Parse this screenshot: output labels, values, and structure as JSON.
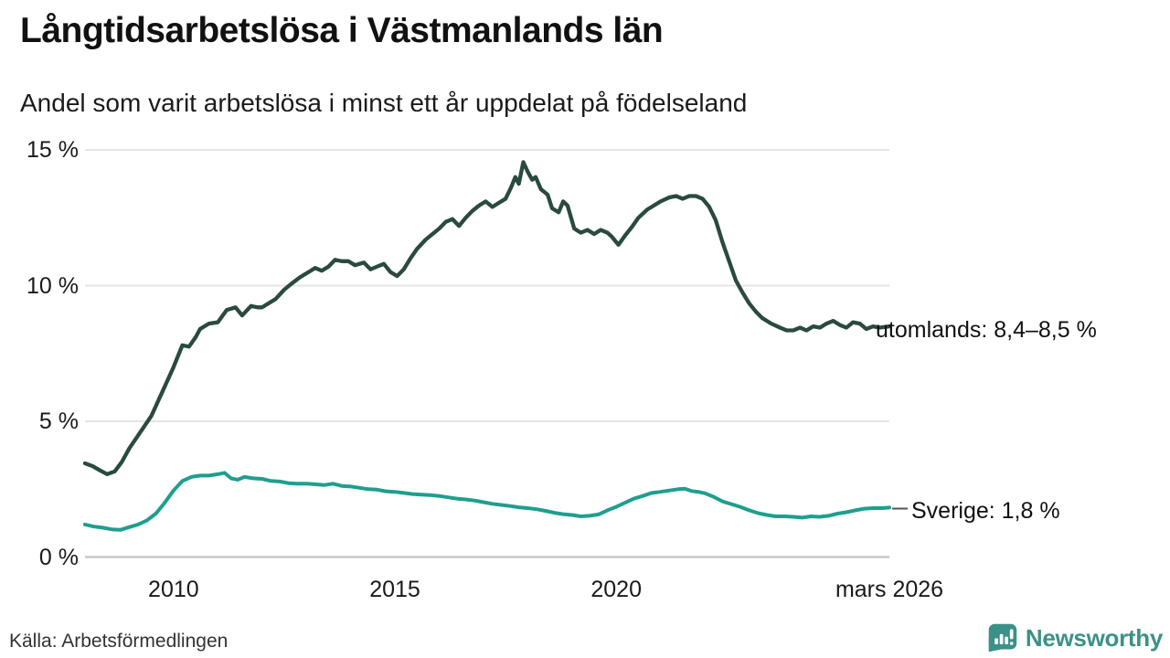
{
  "header": {
    "title": "Långtidsarbetslösa i Västmanlands län",
    "subtitle": "Andel som varit arbetslösa i minst ett år uppdelat på födelseland"
  },
  "footer": {
    "source": "Källa: Arbetsförmedlingen",
    "brand": "Newsworthy"
  },
  "chart_data": {
    "type": "line",
    "title": "Långtidsarbetslösa i Västmanlands län",
    "subtitle": "Andel som varit arbetslösa i minst ett år uppdelat på födelseland",
    "unit": "%",
    "grid": true,
    "colors": {
      "gridline": "#e4e4e4",
      "zeroline": "#c9c9c9",
      "text": "#1a1a1a",
      "brand": "#3b9187",
      "connector": "#555555"
    },
    "x_axis": {
      "range_start": 2008.0,
      "range_end": 2026.17,
      "ticks": [
        {
          "year": 2010,
          "label": "2010"
        },
        {
          "year": 2015,
          "label": "2015"
        },
        {
          "year": 2020,
          "label": "2020"
        },
        {
          "year": 2026.17,
          "label": "mars 2026"
        }
      ]
    },
    "y_axis": {
      "min": 0,
      "max": 15,
      "ticks": [
        {
          "value": 0,
          "label": "0 %"
        },
        {
          "value": 5,
          "label": "5 %"
        },
        {
          "value": 10,
          "label": "10 %"
        },
        {
          "value": 15,
          "label": "15 %"
        }
      ]
    },
    "series": [
      {
        "name": "utomlands",
        "color": "#2a4a3e",
        "end_label": "utomlands: 8,4–8,5 %",
        "last_value_label": "8,4–8,5 %",
        "points": [
          [
            2008.0,
            3.45
          ],
          [
            2008.17,
            3.35
          ],
          [
            2008.33,
            3.2
          ],
          [
            2008.5,
            3.05
          ],
          [
            2008.67,
            3.15
          ],
          [
            2008.83,
            3.5
          ],
          [
            2009.0,
            4.0
          ],
          [
            2009.25,
            4.6
          ],
          [
            2009.5,
            5.2
          ],
          [
            2009.75,
            6.1
          ],
          [
            2010.0,
            7.0
          ],
          [
            2010.2,
            7.8
          ],
          [
            2010.35,
            7.75
          ],
          [
            2010.5,
            8.1
          ],
          [
            2010.6,
            8.4
          ],
          [
            2010.8,
            8.6
          ],
          [
            2011.0,
            8.65
          ],
          [
            2011.2,
            9.1
          ],
          [
            2011.4,
            9.2
          ],
          [
            2011.55,
            8.9
          ],
          [
            2011.75,
            9.25
          ],
          [
            2011.9,
            9.2
          ],
          [
            2012.0,
            9.2
          ],
          [
            2012.15,
            9.35
          ],
          [
            2012.3,
            9.5
          ],
          [
            2012.5,
            9.85
          ],
          [
            2012.65,
            10.05
          ],
          [
            2012.85,
            10.3
          ],
          [
            2013.05,
            10.5
          ],
          [
            2013.2,
            10.65
          ],
          [
            2013.35,
            10.55
          ],
          [
            2013.5,
            10.7
          ],
          [
            2013.65,
            10.95
          ],
          [
            2013.8,
            10.9
          ],
          [
            2013.95,
            10.9
          ],
          [
            2014.1,
            10.75
          ],
          [
            2014.3,
            10.85
          ],
          [
            2014.45,
            10.6
          ],
          [
            2014.6,
            10.7
          ],
          [
            2014.75,
            10.8
          ],
          [
            2014.9,
            10.5
          ],
          [
            2015.05,
            10.35
          ],
          [
            2015.2,
            10.6
          ],
          [
            2015.35,
            11.0
          ],
          [
            2015.5,
            11.35
          ],
          [
            2015.7,
            11.7
          ],
          [
            2015.85,
            11.9
          ],
          [
            2016.0,
            12.1
          ],
          [
            2016.15,
            12.35
          ],
          [
            2016.3,
            12.45
          ],
          [
            2016.45,
            12.2
          ],
          [
            2016.6,
            12.5
          ],
          [
            2016.75,
            12.75
          ],
          [
            2016.9,
            12.95
          ],
          [
            2017.05,
            13.1
          ],
          [
            2017.2,
            12.9
          ],
          [
            2017.35,
            13.05
          ],
          [
            2017.5,
            13.2
          ],
          [
            2017.62,
            13.6
          ],
          [
            2017.72,
            14.0
          ],
          [
            2017.8,
            13.75
          ],
          [
            2017.9,
            14.55
          ],
          [
            2018.0,
            14.2
          ],
          [
            2018.1,
            13.9
          ],
          [
            2018.18,
            14.0
          ],
          [
            2018.3,
            13.55
          ],
          [
            2018.45,
            13.35
          ],
          [
            2018.55,
            12.85
          ],
          [
            2018.7,
            12.7
          ],
          [
            2018.8,
            13.1
          ],
          [
            2018.9,
            12.95
          ],
          [
            2019.05,
            12.1
          ],
          [
            2019.2,
            11.95
          ],
          [
            2019.35,
            12.05
          ],
          [
            2019.5,
            11.9
          ],
          [
            2019.65,
            12.05
          ],
          [
            2019.8,
            11.95
          ],
          [
            2019.9,
            11.8
          ],
          [
            2020.05,
            11.5
          ],
          [
            2020.2,
            11.85
          ],
          [
            2020.35,
            12.15
          ],
          [
            2020.5,
            12.5
          ],
          [
            2020.7,
            12.8
          ],
          [
            2020.85,
            12.95
          ],
          [
            2021.0,
            13.1
          ],
          [
            2021.2,
            13.25
          ],
          [
            2021.35,
            13.3
          ],
          [
            2021.5,
            13.2
          ],
          [
            2021.65,
            13.3
          ],
          [
            2021.8,
            13.3
          ],
          [
            2021.95,
            13.2
          ],
          [
            2022.1,
            12.9
          ],
          [
            2022.25,
            12.4
          ],
          [
            2022.4,
            11.6
          ],
          [
            2022.55,
            10.9
          ],
          [
            2022.7,
            10.2
          ],
          [
            2022.85,
            9.75
          ],
          [
            2023.0,
            9.35
          ],
          [
            2023.15,
            9.05
          ],
          [
            2023.3,
            8.8
          ],
          [
            2023.5,
            8.6
          ],
          [
            2023.7,
            8.45
          ],
          [
            2023.85,
            8.35
          ],
          [
            2024.0,
            8.35
          ],
          [
            2024.15,
            8.45
          ],
          [
            2024.3,
            8.35
          ],
          [
            2024.45,
            8.5
          ],
          [
            2024.6,
            8.45
          ],
          [
            2024.75,
            8.6
          ],
          [
            2024.9,
            8.7
          ],
          [
            2025.05,
            8.55
          ],
          [
            2025.2,
            8.45
          ],
          [
            2025.35,
            8.65
          ],
          [
            2025.5,
            8.6
          ],
          [
            2025.65,
            8.4
          ],
          [
            2025.8,
            8.5
          ],
          [
            2025.95,
            8.45
          ],
          [
            2026.17,
            8.5
          ]
        ]
      },
      {
        "name": "Sverige",
        "color": "#1f9e8e",
        "end_label": "Sverige: 1,8 %",
        "last_value_label": "1,8 %",
        "points": [
          [
            2008.0,
            1.2
          ],
          [
            2008.2,
            1.12
          ],
          [
            2008.4,
            1.08
          ],
          [
            2008.6,
            1.02
          ],
          [
            2008.8,
            1.0
          ],
          [
            2009.0,
            1.1
          ],
          [
            2009.2,
            1.2
          ],
          [
            2009.4,
            1.35
          ],
          [
            2009.6,
            1.6
          ],
          [
            2009.8,
            2.0
          ],
          [
            2010.0,
            2.45
          ],
          [
            2010.2,
            2.8
          ],
          [
            2010.4,
            2.95
          ],
          [
            2010.6,
            3.0
          ],
          [
            2010.8,
            3.0
          ],
          [
            2011.0,
            3.05
          ],
          [
            2011.15,
            3.1
          ],
          [
            2011.3,
            2.9
          ],
          [
            2011.45,
            2.85
          ],
          [
            2011.6,
            2.95
          ],
          [
            2011.8,
            2.9
          ],
          [
            2012.0,
            2.88
          ],
          [
            2012.2,
            2.8
          ],
          [
            2012.4,
            2.78
          ],
          [
            2012.6,
            2.72
          ],
          [
            2012.8,
            2.7
          ],
          [
            2013.0,
            2.7
          ],
          [
            2013.2,
            2.68
          ],
          [
            2013.4,
            2.65
          ],
          [
            2013.6,
            2.7
          ],
          [
            2013.8,
            2.62
          ],
          [
            2014.0,
            2.6
          ],
          [
            2014.2,
            2.55
          ],
          [
            2014.4,
            2.5
          ],
          [
            2014.6,
            2.48
          ],
          [
            2014.8,
            2.42
          ],
          [
            2015.0,
            2.4
          ],
          [
            2015.2,
            2.36
          ],
          [
            2015.4,
            2.32
          ],
          [
            2015.6,
            2.3
          ],
          [
            2015.8,
            2.28
          ],
          [
            2016.0,
            2.25
          ],
          [
            2016.2,
            2.2
          ],
          [
            2016.4,
            2.15
          ],
          [
            2016.6,
            2.12
          ],
          [
            2016.8,
            2.08
          ],
          [
            2017.0,
            2.02
          ],
          [
            2017.2,
            1.96
          ],
          [
            2017.4,
            1.92
          ],
          [
            2017.6,
            1.88
          ],
          [
            2017.8,
            1.83
          ],
          [
            2018.0,
            1.8
          ],
          [
            2018.2,
            1.76
          ],
          [
            2018.4,
            1.7
          ],
          [
            2018.6,
            1.63
          ],
          [
            2018.8,
            1.58
          ],
          [
            2019.0,
            1.55
          ],
          [
            2019.2,
            1.5
          ],
          [
            2019.4,
            1.52
          ],
          [
            2019.6,
            1.57
          ],
          [
            2019.8,
            1.72
          ],
          [
            2020.0,
            1.85
          ],
          [
            2020.2,
            2.0
          ],
          [
            2020.4,
            2.15
          ],
          [
            2020.6,
            2.25
          ],
          [
            2020.8,
            2.36
          ],
          [
            2021.0,
            2.4
          ],
          [
            2021.2,
            2.45
          ],
          [
            2021.4,
            2.5
          ],
          [
            2021.55,
            2.52
          ],
          [
            2021.7,
            2.43
          ],
          [
            2021.85,
            2.4
          ],
          [
            2022.0,
            2.35
          ],
          [
            2022.2,
            2.22
          ],
          [
            2022.4,
            2.05
          ],
          [
            2022.6,
            1.95
          ],
          [
            2022.8,
            1.85
          ],
          [
            2023.0,
            1.72
          ],
          [
            2023.2,
            1.62
          ],
          [
            2023.4,
            1.55
          ],
          [
            2023.6,
            1.5
          ],
          [
            2023.8,
            1.5
          ],
          [
            2024.0,
            1.48
          ],
          [
            2024.2,
            1.45
          ],
          [
            2024.4,
            1.5
          ],
          [
            2024.6,
            1.48
          ],
          [
            2024.8,
            1.52
          ],
          [
            2025.0,
            1.6
          ],
          [
            2025.2,
            1.65
          ],
          [
            2025.4,
            1.72
          ],
          [
            2025.6,
            1.78
          ],
          [
            2025.8,
            1.8
          ],
          [
            2026.0,
            1.8
          ],
          [
            2026.17,
            1.82
          ]
        ]
      }
    ]
  }
}
